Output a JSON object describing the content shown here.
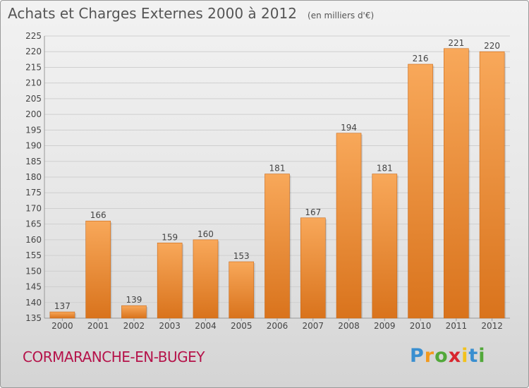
{
  "title": "Achats et Charges Externes 2000 à 2012",
  "subtitle": "(en milliers d'€)",
  "location": "CORMARANCHE-EN-BUGEY",
  "brand": {
    "letters": [
      "P",
      "r",
      "o",
      "x",
      "i",
      "t",
      "i"
    ],
    "colors": [
      "#3a8fd0",
      "#f29a1d",
      "#52a83a",
      "#d8262e",
      "#f2c21d",
      "#3a8fd0",
      "#52a83a"
    ]
  },
  "colors": {
    "bar_top": "#f8a85a",
    "bar_bottom": "#d9731c",
    "grid": "#cfcfcf",
    "axis_text": "#444444",
    "location": "#b5134a"
  },
  "chart_data": {
    "type": "bar",
    "categories": [
      "2000",
      "2001",
      "2002",
      "2003",
      "2004",
      "2005",
      "2006",
      "2007",
      "2008",
      "2009",
      "2010",
      "2011",
      "2012"
    ],
    "values": [
      137,
      166,
      139,
      159,
      160,
      153,
      181,
      167,
      194,
      181,
      216,
      221,
      220
    ],
    "ylim": [
      135,
      225
    ],
    "yticks": [
      135,
      140,
      145,
      150,
      155,
      160,
      165,
      170,
      175,
      180,
      185,
      190,
      195,
      200,
      205,
      210,
      215,
      220,
      225
    ],
    "grid": true,
    "data_labels": true
  }
}
